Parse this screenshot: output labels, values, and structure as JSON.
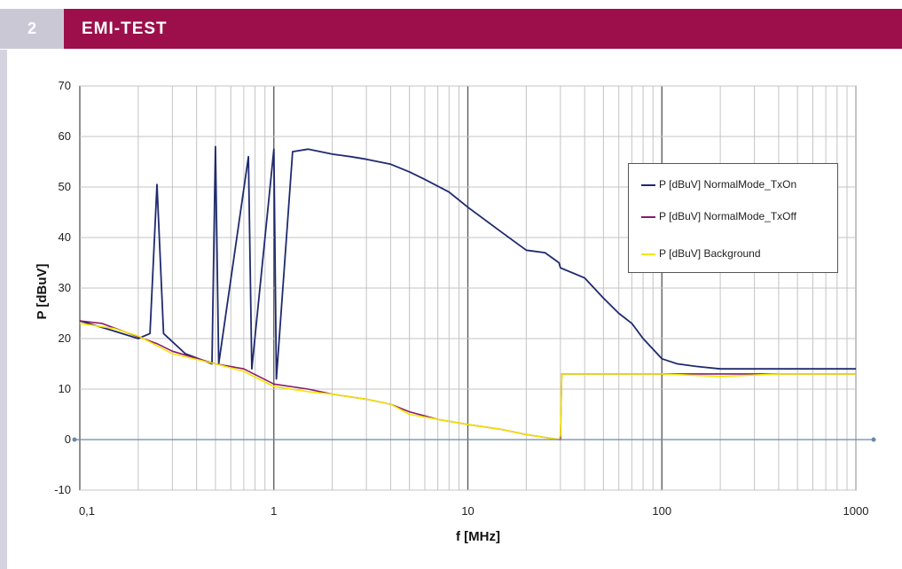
{
  "header": {
    "number": "2",
    "title": "EMI-TEST"
  },
  "chart_data": {
    "type": "line",
    "title": "",
    "xlabel": "f [MHz]",
    "ylabel": "P [dBuV]",
    "x_scale": "log",
    "xlim": [
      0.1,
      1000
    ],
    "ylim": [
      -10,
      70
    ],
    "x_ticks": [
      {
        "value": 0.1,
        "label": "0,1"
      },
      {
        "value": 1,
        "label": "1"
      },
      {
        "value": 10,
        "label": "10"
      },
      {
        "value": 100,
        "label": "100"
      },
      {
        "value": 1000,
        "label": "1000"
      }
    ],
    "y_ticks": [
      {
        "value": -10,
        "label": "-10"
      },
      {
        "value": 0,
        "label": "0"
      },
      {
        "value": 10,
        "label": "10"
      },
      {
        "value": 20,
        "label": "20"
      },
      {
        "value": 30,
        "label": "30"
      },
      {
        "value": 40,
        "label": "40"
      },
      {
        "value": 50,
        "label": "50"
      },
      {
        "value": 60,
        "label": "60"
      },
      {
        "value": 70,
        "label": "70"
      }
    ],
    "grid": true,
    "legend_position": "right",
    "series": [
      {
        "name": "P [dBuV] NormalMode_TxOn",
        "color": "#1f2a6e",
        "points": [
          [
            0.1,
            23.5
          ],
          [
            0.15,
            21.5
          ],
          [
            0.2,
            20
          ],
          [
            0.23,
            21
          ],
          [
            0.25,
            50.5
          ],
          [
            0.27,
            21
          ],
          [
            0.35,
            17
          ],
          [
            0.48,
            15
          ],
          [
            0.5,
            58
          ],
          [
            0.52,
            15
          ],
          [
            0.74,
            56
          ],
          [
            0.77,
            14
          ],
          [
            1.0,
            57.5
          ],
          [
            1.03,
            12
          ],
          [
            1.25,
            57
          ],
          [
            1.5,
            57.5
          ],
          [
            2,
            56.5
          ],
          [
            2.5,
            56
          ],
          [
            3,
            55.5
          ],
          [
            4,
            54.5
          ],
          [
            5,
            53
          ],
          [
            6,
            51.5
          ],
          [
            8,
            49
          ],
          [
            10,
            46
          ],
          [
            15,
            41
          ],
          [
            20,
            37.5
          ],
          [
            25,
            37
          ],
          [
            29.5,
            35
          ],
          [
            30,
            34
          ],
          [
            40,
            32
          ],
          [
            50,
            28
          ],
          [
            60,
            25
          ],
          [
            70,
            23
          ],
          [
            80,
            20
          ],
          [
            100,
            16
          ],
          [
            120,
            15
          ],
          [
            150,
            14.5
          ],
          [
            200,
            14
          ],
          [
            300,
            14
          ],
          [
            500,
            14
          ],
          [
            1000,
            14
          ]
        ]
      },
      {
        "name": "P [dBuV] NormalMode_TxOff",
        "color": "#8b1a6b",
        "points": [
          [
            0.1,
            23.5
          ],
          [
            0.13,
            23
          ],
          [
            0.18,
            21
          ],
          [
            0.25,
            19
          ],
          [
            0.3,
            17.5
          ],
          [
            0.5,
            15
          ],
          [
            0.7,
            14
          ],
          [
            1,
            11
          ],
          [
            1.5,
            10
          ],
          [
            2,
            9
          ],
          [
            3,
            8
          ],
          [
            4,
            7
          ],
          [
            5,
            5.5
          ],
          [
            7,
            4
          ],
          [
            10,
            3
          ],
          [
            15,
            2
          ],
          [
            20,
            1
          ],
          [
            29.5,
            0
          ],
          [
            30,
            0
          ],
          [
            30.5,
            13
          ],
          [
            50,
            13
          ],
          [
            100,
            13
          ],
          [
            200,
            13
          ],
          [
            400,
            13
          ],
          [
            600,
            13
          ],
          [
            1000,
            13
          ]
        ]
      },
      {
        "name": "P [dBuV] Background",
        "color": "#f2e600",
        "points": [
          [
            0.1,
            23
          ],
          [
            0.15,
            22
          ],
          [
            0.2,
            20.5
          ],
          [
            0.3,
            17
          ],
          [
            0.5,
            15
          ],
          [
            0.7,
            13.5
          ],
          [
            1,
            10.5
          ],
          [
            1.5,
            9.5
          ],
          [
            2,
            9
          ],
          [
            3,
            8
          ],
          [
            4,
            7
          ],
          [
            5,
            5
          ],
          [
            7,
            4
          ],
          [
            10,
            3
          ],
          [
            15,
            2
          ],
          [
            20,
            1
          ],
          [
            29.5,
            0
          ],
          [
            30,
            1
          ],
          [
            30.5,
            13
          ],
          [
            50,
            13
          ],
          [
            100,
            13
          ],
          [
            200,
            12.5
          ],
          [
            400,
            13
          ],
          [
            600,
            13
          ],
          [
            1000,
            13
          ]
        ]
      }
    ]
  }
}
